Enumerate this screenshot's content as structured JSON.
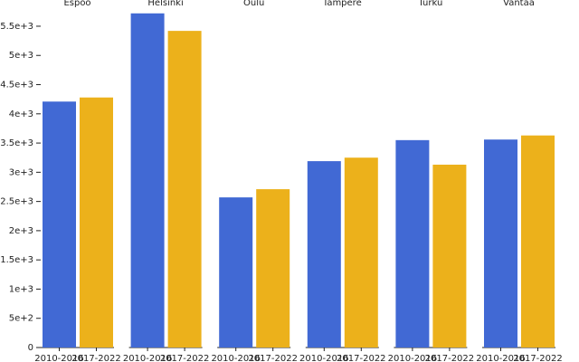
{
  "chart_data": {
    "type": "bar",
    "categories": [
      "Espoo",
      "Helsinki",
      "Oulu",
      "Tampere",
      "Turku",
      "Vantaa"
    ],
    "series": [
      {
        "name": "2010-2016",
        "color": "#4169d4",
        "values": [
          4210,
          5720,
          2570,
          3190,
          3550,
          3560
        ]
      },
      {
        "name": "2017-2022",
        "color": "#ecb11b",
        "values": [
          4280,
          5420,
          2710,
          3250,
          3130,
          3630
        ]
      }
    ],
    "ylim": [
      0,
      5800
    ],
    "yticks": [
      0,
      {
        "value": 500,
        "label": "5e+2"
      },
      {
        "value": 1000,
        "label": "1e+3"
      },
      {
        "value": 1500,
        "label": "1.5e+3"
      },
      {
        "value": 2000,
        "label": "2e+3"
      },
      {
        "value": 2500,
        "label": "2.5e+3"
      },
      {
        "value": 3000,
        "label": "3e+3"
      },
      {
        "value": 3500,
        "label": "3.5e+3"
      },
      {
        "value": 4000,
        "label": "4e+3"
      },
      {
        "value": 4500,
        "label": "4.5e+3"
      },
      {
        "value": 5000,
        "label": "5e+3"
      },
      {
        "value": 5500,
        "label": "5.5e+3"
      }
    ]
  }
}
